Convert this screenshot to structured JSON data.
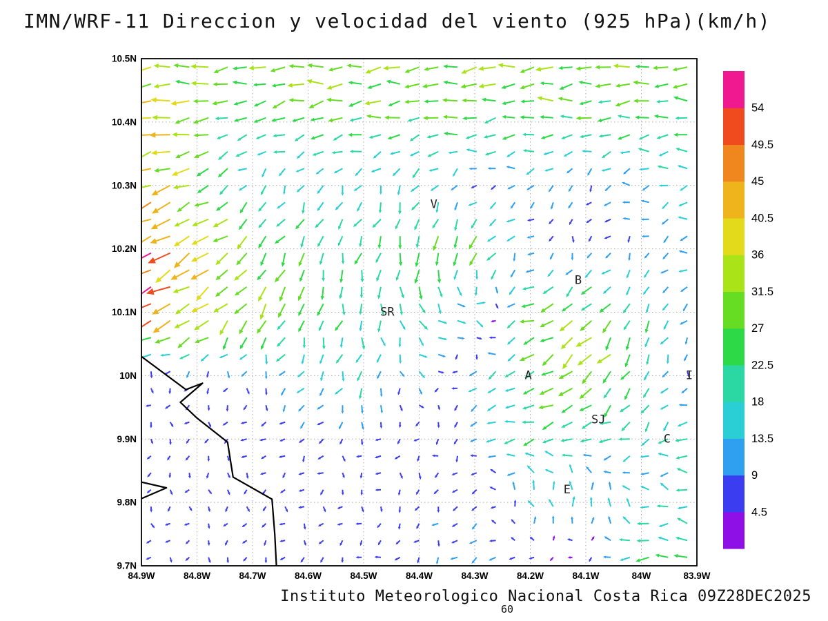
{
  "chart_data": {
    "type": "quiver",
    "title": "IMN/WRF-11 Direccion y velocidad del viento (925 hPa)(km/h)",
    "footer": "Instituto Meteorologico Nacional Costa Rica 09Z28DEC2025",
    "forecast_hour": "60",
    "unit": "km/h",
    "lon_range": [
      -84.9,
      -83.9
    ],
    "lat_range": [
      9.7,
      10.5
    ],
    "x_axis": {
      "labels": [
        "84.9W",
        "84.8W",
        "84.7W",
        "84.6W",
        "84.5W",
        "84.4W",
        "84.3W",
        "84.2W",
        "84.1W",
        "84W",
        "83.9W"
      ],
      "values": [
        -84.9,
        -84.8,
        -84.7,
        -84.6,
        -84.5,
        -84.4,
        -84.3,
        -84.2,
        -84.1,
        -84.0,
        -83.9
      ]
    },
    "y_axis": {
      "labels": [
        "10.5N",
        "10.4N",
        "10.3N",
        "10.2N",
        "10.1N",
        "10N",
        "9.9N",
        "9.8N",
        "9.7N"
      ],
      "values": [
        10.5,
        10.4,
        10.3,
        10.2,
        10.1,
        10.0,
        9.9,
        9.8,
        9.7
      ]
    },
    "colorbar": {
      "levels": [
        4.5,
        9,
        13.5,
        18,
        22.5,
        27,
        31.5,
        36,
        40.5,
        45,
        49.5,
        54
      ],
      "level_labels": [
        "4.5",
        "9",
        "13.5",
        "18",
        "22.5",
        "27",
        "31.5",
        "36",
        "40.5",
        "45",
        "49.5",
        "54"
      ],
      "colors": [
        "#8f10e6",
        "#3a3df0",
        "#2f9ff0",
        "#29cfd4",
        "#2bd8a3",
        "#2ed948",
        "#66dd22",
        "#abe319",
        "#e3da1b",
        "#efb31c",
        "#f0871e",
        "#ef4b1e",
        "#ef1a90"
      ]
    },
    "city_labels": [
      {
        "text": "V",
        "lon": -84.38,
        "lat": 10.27
      },
      {
        "text": "B",
        "lon": -84.12,
        "lat": 10.15
      },
      {
        "text": "SR",
        "lon": -84.47,
        "lat": 10.1
      },
      {
        "text": "A",
        "lon": -84.21,
        "lat": 10.0
      },
      {
        "text": "SJ",
        "lon": -84.09,
        "lat": 9.93
      },
      {
        "text": "C",
        "lon": -83.96,
        "lat": 9.9
      },
      {
        "text": "E",
        "lon": -84.14,
        "lat": 9.82
      },
      {
        "text": "I",
        "lon": -83.92,
        "lat": 10.0
      }
    ],
    "coastline": [
      [
        [
          -84.9,
          10.03
        ],
        [
          -84.82,
          9.978
        ],
        [
          -84.79,
          9.988
        ],
        [
          -84.83,
          9.958
        ],
        [
          -84.8,
          9.933
        ],
        [
          -84.745,
          9.895
        ],
        [
          -84.735,
          9.84
        ],
        [
          -84.665,
          9.805
        ],
        [
          -84.66,
          9.75
        ],
        [
          -84.657,
          9.7
        ]
      ],
      [
        [
          -84.9,
          9.832
        ],
        [
          -84.855,
          9.823
        ],
        [
          -84.9,
          9.806
        ]
      ]
    ],
    "wind_field": {
      "comment": "coarse 0.1-degree control grid, rows north-to-south, u/v in km/h",
      "lons": [
        -84.9,
        -84.8,
        -84.7,
        -84.6,
        -84.5,
        -84.4,
        -84.3,
        -84.2,
        -84.1,
        -84.0,
        -83.9
      ],
      "lats": [
        10.5,
        10.4,
        10.3,
        10.2,
        10.1,
        10.0,
        9.9,
        9.8,
        9.7
      ],
      "u": [
        [
          -33,
          -32,
          -30,
          -31,
          -32,
          -30,
          -31,
          -32,
          -30,
          -29,
          -28
        ],
        [
          -44,
          -30,
          -20,
          -24,
          -26,
          -25,
          -26,
          -27,
          -25,
          -24,
          -23
        ],
        [
          -38,
          -30,
          -10,
          -8,
          -6,
          -10,
          -4,
          -12,
          -4,
          -14,
          -15
        ],
        [
          -46,
          -34,
          -22,
          -10,
          -7,
          -9,
          -16,
          -5,
          -4,
          -6,
          -14
        ],
        [
          -48,
          -34,
          -14,
          -7,
          -2,
          10,
          18,
          -28,
          -24,
          -8,
          -5
        ],
        [
          -3,
          -3,
          -4,
          -6,
          -8,
          12,
          -12,
          -22,
          -24,
          -8,
          -3
        ],
        [
          -2,
          -3,
          -3,
          -4,
          -3,
          -4,
          -8,
          -24,
          -22,
          -14,
          -20
        ],
        [
          -2,
          -2,
          -3,
          -3,
          -3,
          -4,
          -6,
          -6,
          4,
          -14,
          -17
        ],
        [
          -2,
          -3,
          -3,
          -3,
          -4,
          -5,
          -9,
          -4,
          -3,
          -26,
          -24
        ]
      ],
      "v": [
        [
          -3,
          -2,
          -4,
          -3,
          -2,
          -3,
          -2,
          -3,
          -2,
          -2,
          -3
        ],
        [
          -8,
          -4,
          -5,
          -4,
          -3,
          -3,
          -2,
          -2,
          -3,
          -3,
          -2
        ],
        [
          -18,
          -12,
          -12,
          -14,
          -12,
          -15,
          -6,
          -3,
          -8,
          -2,
          -2
        ],
        [
          -26,
          -20,
          -24,
          -22,
          -20,
          -26,
          -26,
          -8,
          -7,
          -8,
          -3
        ],
        [
          -20,
          -16,
          -26,
          -24,
          -20,
          -18,
          -2,
          -8,
          -20,
          -20,
          -8
        ],
        [
          -7,
          -6,
          -7,
          -14,
          -18,
          -4,
          -5,
          -8,
          -24,
          -22,
          -6
        ],
        [
          -5,
          -5,
          -6,
          -7,
          -6,
          -6,
          -4,
          -4,
          -5,
          -10,
          -4
        ],
        [
          -5,
          -5,
          -6,
          -5,
          -5,
          -6,
          -6,
          16,
          20,
          8,
          3
        ],
        [
          -5,
          -5,
          -5,
          -6,
          -5,
          -6,
          -8,
          -7,
          -5,
          -4,
          -4
        ]
      ]
    }
  }
}
